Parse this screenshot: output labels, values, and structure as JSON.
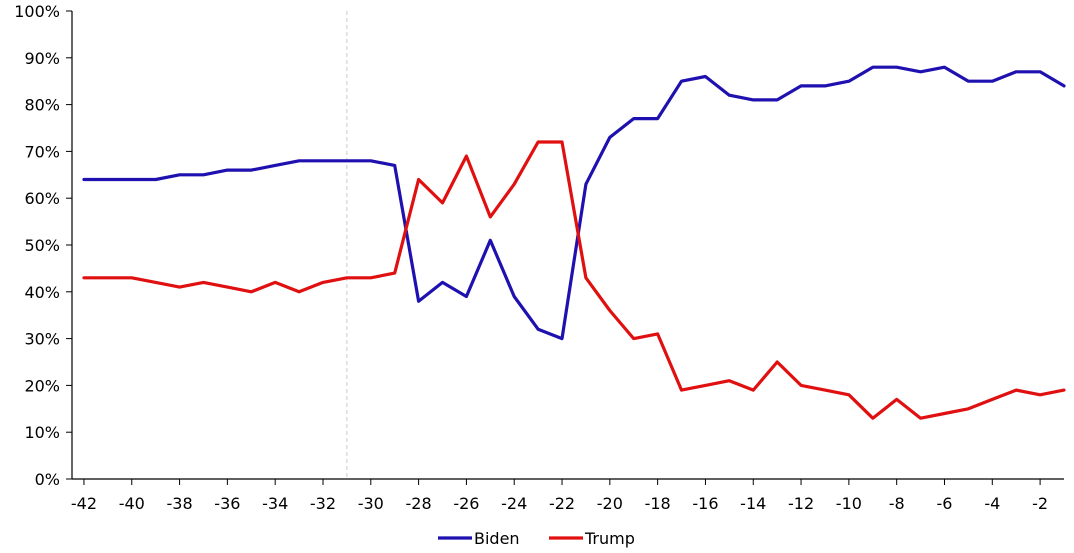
{
  "chart_data": {
    "type": "line",
    "x": [
      -42,
      -41,
      -40,
      -39,
      -38,
      -37,
      -36,
      -35,
      -34,
      -33,
      -32,
      -31,
      -30,
      -29,
      -28,
      -27,
      -26,
      -25,
      -24,
      -23,
      -22,
      -21,
      -20,
      -19,
      -18,
      -17,
      -16,
      -15,
      -14,
      -13,
      -12,
      -11,
      -10,
      -9,
      -8,
      -7,
      -6,
      -5,
      -4,
      -3,
      -2,
      -1
    ],
    "series": [
      {
        "name": "Biden",
        "color": "#1f10b0",
        "values": [
          64,
          64,
          64,
          64,
          65,
          65,
          66,
          66,
          67,
          68,
          68,
          68,
          68,
          67,
          38,
          42,
          39,
          51,
          39,
          32,
          30,
          63,
          73,
          77,
          77,
          85,
          86,
          82,
          81,
          81,
          84,
          84,
          85,
          88,
          88,
          87,
          88,
          85,
          85,
          87,
          87,
          84
        ]
      },
      {
        "name": "Trump",
        "color": "#e01010",
        "values": [
          43,
          43,
          43,
          42,
          41,
          42,
          41,
          40,
          42,
          40,
          42,
          43,
          43,
          44,
          64,
          59,
          69,
          56,
          63,
          72,
          72,
          43,
          36,
          30,
          31,
          19,
          20,
          21,
          19,
          25,
          20,
          19,
          18,
          13,
          17,
          13,
          14,
          15,
          17,
          19,
          18,
          19
        ]
      }
    ],
    "x_ticks": [
      -42,
      -40,
      -38,
      -36,
      -34,
      -32,
      -30,
      -28,
      -26,
      -24,
      -22,
      -20,
      -18,
      -16,
      -14,
      -12,
      -10,
      -8,
      -6,
      -4,
      -2
    ],
    "y_ticks": [
      0,
      10,
      20,
      30,
      40,
      50,
      60,
      70,
      80,
      90,
      100
    ],
    "y_tick_labels": [
      "0%",
      "10%",
      "20%",
      "30%",
      "40%",
      "50%",
      "60%",
      "70%",
      "80%",
      "90%",
      "100%"
    ],
    "ylim": [
      0,
      100
    ],
    "xlim": [
      -42,
      -1
    ],
    "reference_lines_x": [
      -31
    ],
    "title": "",
    "xlabel": "",
    "ylabel": "",
    "grid": false,
    "legend_position": "bottom"
  }
}
